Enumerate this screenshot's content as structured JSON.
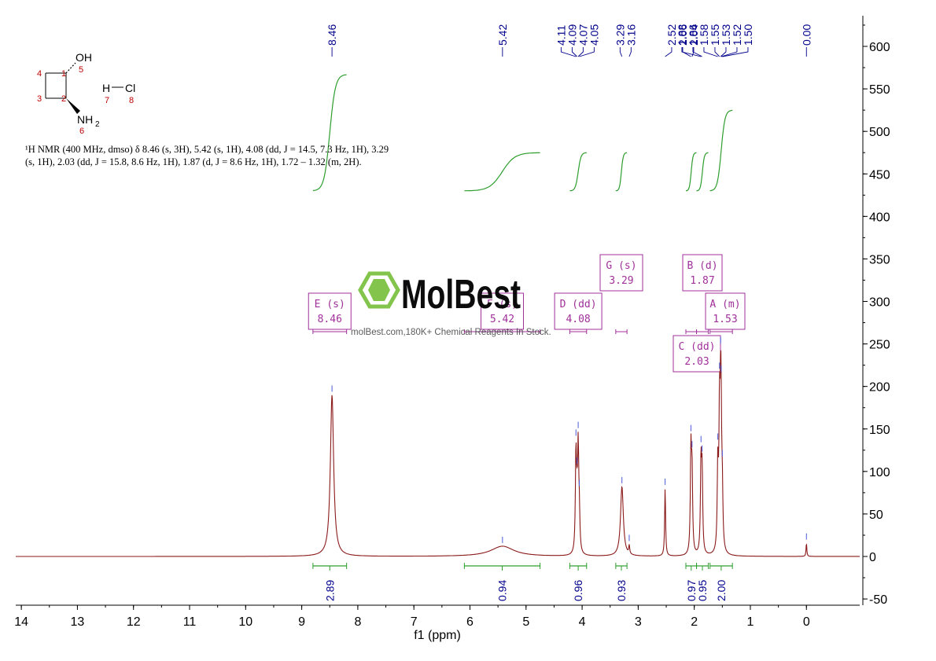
{
  "chart_data": {
    "type": "line",
    "description_line1": "¹H NMR (400 MHz, dmso) δ 8.46 (s, 3H), 5.42 (s, 1H), 4.08 (dd, J = 14.5, 7.3 Hz, 1H), 3.29",
    "description_line2": "(s, 1H), 2.03 (dd, J = 15.8, 8.6 Hz, 1H), 1.87 (d, J = 8.6 Hz, 1H), 1.72 – 1.32 (m, 2H).",
    "xlabel": "f1 (ppm)",
    "xlim": [
      14.1,
      -0.95
    ],
    "ylim": [
      -50,
      630
    ],
    "x_ticks": [
      "14",
      "13",
      "12",
      "11",
      "10",
      "9",
      "8",
      "7",
      "6",
      "5",
      "4",
      "3",
      "2",
      "1",
      "0"
    ],
    "y_ticks": [
      "-50",
      "0",
      "50",
      "100",
      "150",
      "200",
      "250",
      "300",
      "350",
      "400",
      "450",
      "500",
      "550",
      "600"
    ],
    "peaks": [
      {
        "ppm": 8.46,
        "height": 190,
        "width": 0.035
      },
      {
        "ppm": 5.42,
        "height": 12,
        "width": 0.25
      },
      {
        "ppm": 4.11,
        "height": 116,
        "width": 0.012
      },
      {
        "ppm": 4.09,
        "height": 40,
        "width": 0.012
      },
      {
        "ppm": 4.07,
        "height": 116,
        "width": 0.012
      },
      {
        "ppm": 4.05,
        "height": 40,
        "width": 0.012
      },
      {
        "ppm": 3.29,
        "height": 82,
        "width": 0.03
      },
      {
        "ppm": 3.16,
        "height": 10,
        "width": 0.01
      },
      {
        "ppm": 2.52,
        "height": 80,
        "width": 0.01
      },
      {
        "ppm": 2.06,
        "height": 118,
        "width": 0.012
      },
      {
        "ppm": 2.04,
        "height": 92,
        "width": 0.012
      },
      {
        "ppm": 1.88,
        "height": 105,
        "width": 0.012
      },
      {
        "ppm": 1.86,
        "height": 90,
        "width": 0.012
      },
      {
        "ppm": 1.58,
        "height": 100,
        "width": 0.012
      },
      {
        "ppm": 1.55,
        "height": 150,
        "width": 0.012
      },
      {
        "ppm": 1.53,
        "height": 140,
        "width": 0.012
      },
      {
        "ppm": 1.52,
        "height": 90,
        "width": 0.012
      },
      {
        "ppm": 1.5,
        "height": 60,
        "width": 0.012
      },
      {
        "ppm": 0.0,
        "height": 16,
        "width": 0.008
      }
    ],
    "peak_labels": [
      "8.46",
      "5.42",
      "4.11",
      "4.09",
      "4.07",
      "4.05",
      "3.29",
      "3.16",
      "2.52",
      "2.06",
      "2.04",
      "1.88",
      "1.86",
      "1.58",
      "1.55",
      "1.53",
      "1.52",
      "1.50",
      "0.00"
    ],
    "peak_label_ppm": [
      8.46,
      5.42,
      4.11,
      4.09,
      4.07,
      4.05,
      3.29,
      3.16,
      2.52,
      2.06,
      2.04,
      1.88,
      1.86,
      1.58,
      1.55,
      1.53,
      1.52,
      1.5,
      0.0
    ],
    "integrals": [
      {
        "from": 8.8,
        "to": 8.2,
        "value": "2.89",
        "y_low": 430,
        "y_high": 567
      },
      {
        "from": 6.1,
        "to": 4.75,
        "value": "0.94",
        "y_low": 430,
        "y_high": 475
      },
      {
        "from": 4.22,
        "to": 3.92,
        "value": "0.96",
        "y_low": 430,
        "y_high": 475
      },
      {
        "from": 3.4,
        "to": 3.2,
        "value": "0.93",
        "y_low": 430,
        "y_high": 475
      },
      {
        "from": 2.15,
        "to": 1.96,
        "value": "0.97",
        "y_low": 430,
        "y_high": 475
      },
      {
        "from": 1.96,
        "to": 1.75,
        "value": "0.95",
        "y_low": 430,
        "y_high": 475
      },
      {
        "from": 1.72,
        "to": 1.32,
        "value": "2.00",
        "y_low": 430,
        "y_high": 525
      }
    ],
    "multiplets": [
      {
        "id": "E",
        "mult": "s",
        "shift": "8.46",
        "range": [
          8.8,
          8.2
        ]
      },
      {
        "id": "F",
        "mult": "s",
        "shift": "5.42",
        "range": [
          6.1,
          4.75
        ]
      },
      {
        "id": "D",
        "mult": "dd",
        "shift": "4.08",
        "range": [
          4.22,
          3.92
        ]
      },
      {
        "id": "G",
        "mult": "s",
        "shift": "3.29",
        "range": [
          3.4,
          3.2
        ]
      },
      {
        "id": "B",
        "mult": "d",
        "shift": "1.87",
        "range": [
          1.96,
          1.75
        ]
      },
      {
        "id": "A",
        "mult": "m",
        "shift": "1.53",
        "range": [
          1.72,
          1.32
        ]
      },
      {
        "id": "C",
        "mult": "dd",
        "shift": "2.03",
        "range": [
          2.15,
          1.96
        ]
      }
    ],
    "colors": {
      "spectrum": "#8b1a1a",
      "integral": "#2e9e2e",
      "label": "#00008b",
      "multiplet": "#a0309a",
      "axis": "#000000",
      "logo": "#7dc243"
    }
  },
  "structure": {
    "atoms": [
      "OH",
      "5",
      "4",
      "1",
      "3",
      "2",
      "H",
      "Cl",
      "7",
      "8",
      "NH",
      "2",
      "6"
    ]
  },
  "watermark": {
    "brand": "MolBest",
    "tagline": "molBest.com,180K+ Chemical Reagents In Stock."
  }
}
